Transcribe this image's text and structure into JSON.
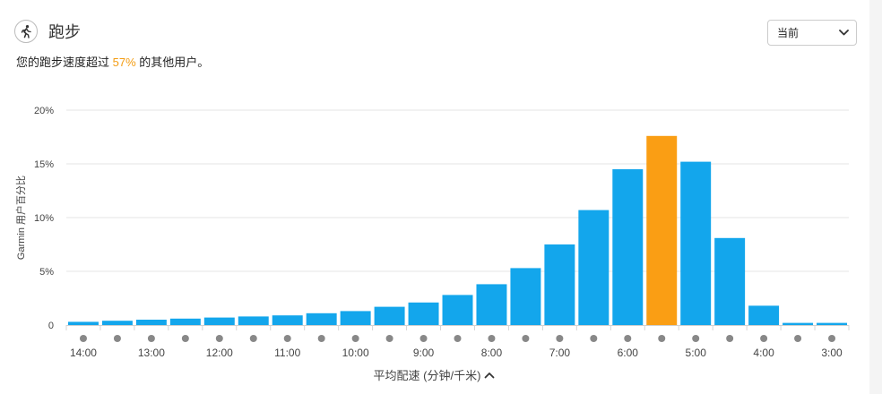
{
  "header": {
    "title": "跑步",
    "icon": "runner-icon"
  },
  "summary": {
    "prefix": "您的跑步速度超过 ",
    "percent": "57%",
    "suffix": " 的其他用户。"
  },
  "period_select": {
    "selected": "当前"
  },
  "chart_data": {
    "type": "bar",
    "ylabel": "Garmin 用户百分比",
    "xlabel": "平均配速 (分钟/千米)",
    "ylim": [
      0,
      20
    ],
    "yticks": [
      0,
      5,
      10,
      15,
      20
    ],
    "ytick_labels": [
      "0",
      "5%",
      "10%",
      "15%",
      "20%"
    ],
    "grid": true,
    "categories": [
      "14:00",
      "13:30",
      "13:00",
      "12:30",
      "12:00",
      "11:30",
      "11:00",
      "10:30",
      "10:00",
      "9:30",
      "9:00",
      "8:30",
      "8:00",
      "7:30",
      "7:00",
      "6:30",
      "6:00",
      "5:30",
      "5:00",
      "4:30",
      "4:00",
      "3:30",
      "3:00"
    ],
    "xtick_labels": [
      {
        "index": 0,
        "label": "14:00"
      },
      {
        "index": 2,
        "label": "13:00"
      },
      {
        "index": 4,
        "label": "12:00"
      },
      {
        "index": 6,
        "label": "11:00"
      },
      {
        "index": 8,
        "label": "10:00"
      },
      {
        "index": 10,
        "label": "9:00"
      },
      {
        "index": 12,
        "label": "8:00"
      },
      {
        "index": 14,
        "label": "7:00"
      },
      {
        "index": 16,
        "label": "6:00"
      },
      {
        "index": 18,
        "label": "5:00"
      },
      {
        "index": 20,
        "label": "4:00"
      },
      {
        "index": 22,
        "label": "3:00"
      }
    ],
    "values": [
      0.3,
      0.4,
      0.5,
      0.6,
      0.7,
      0.8,
      0.9,
      1.1,
      1.3,
      1.7,
      2.1,
      2.8,
      3.8,
      5.3,
      7.5,
      10.7,
      14.5,
      17.6,
      15.2,
      8.1,
      1.8,
      0.2,
      0.2
    ],
    "highlight_index": 17,
    "colors": {
      "bar": "#13a6ec",
      "highlight": "#fa9e14",
      "grid": "#e6e6e6",
      "dot": "#888888"
    }
  }
}
